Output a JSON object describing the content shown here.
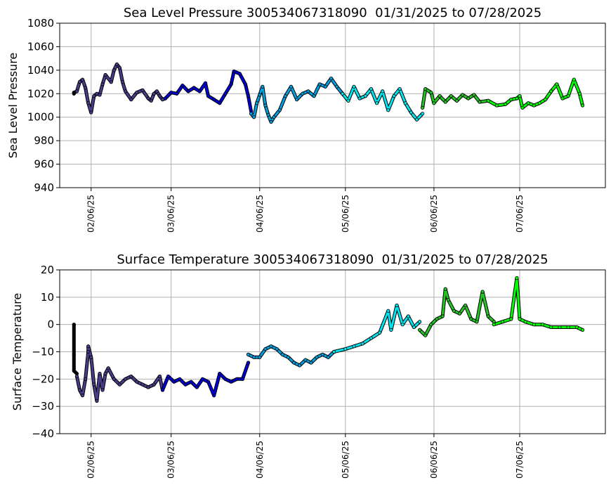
{
  "chart_data": [
    {
      "type": "scatter",
      "title": "Sea Level Pressure 300534067318090  01/31/2025 to 07/28/2025",
      "ylabel": "Sea Level Pressure",
      "xlabel": "",
      "xlim": [
        "2025-01-26",
        "2025-08-05"
      ],
      "ylim": [
        940,
        1080
      ],
      "yticks": [
        940,
        960,
        980,
        1000,
        1020,
        1040,
        1060,
        1080
      ],
      "xticks": [
        {
          "date": "2025-02-06",
          "label": "02/06/25"
        },
        {
          "date": "2025-03-06",
          "label": "03/06/25"
        },
        {
          "date": "2025-04-06",
          "label": "04/06/25"
        },
        {
          "date": "2025-05-06",
          "label": "05/06/25"
        },
        {
          "date": "2025-06-06",
          "label": "06/06/25"
        },
        {
          "date": "2025-07-06",
          "label": "07/06/25"
        }
      ],
      "grid": true,
      "series": [
        {
          "color": "#000000",
          "points": [
            [
              "2025-01-31",
              1020
            ],
            [
              "2025-01-31",
              1021
            ],
            [
              "2025-02-01",
              1022
            ]
          ]
        },
        {
          "color": "#483d8b",
          "points": [
            [
              "2025-02-01",
              1022
            ],
            [
              "2025-02-02",
              1030
            ],
            [
              "2025-02-03",
              1032
            ],
            [
              "2025-02-04",
              1025
            ],
            [
              "2025-02-05",
              1012
            ],
            [
              "2025-02-06",
              1004
            ],
            [
              "2025-02-07",
              1018
            ],
            [
              "2025-02-08",
              1020
            ],
            [
              "2025-02-09",
              1019
            ],
            [
              "2025-02-10",
              1028
            ],
            [
              "2025-02-11",
              1036
            ],
            [
              "2025-02-13",
              1030
            ],
            [
              "2025-02-14",
              1040
            ],
            [
              "2025-02-15",
              1045
            ],
            [
              "2025-02-16",
              1042
            ],
            [
              "2025-02-17",
              1030
            ],
            [
              "2025-02-18",
              1022
            ],
            [
              "2025-02-20",
              1015
            ],
            [
              "2025-02-22",
              1021
            ],
            [
              "2025-02-24",
              1023
            ],
            [
              "2025-02-26",
              1016
            ],
            [
              "2025-02-27",
              1014
            ],
            [
              "2025-02-28",
              1020
            ],
            [
              "2025-03-01",
              1022
            ],
            [
              "2025-03-02",
              1018
            ],
            [
              "2025-03-03",
              1015
            ],
            [
              "2025-03-04",
              1016
            ]
          ]
        },
        {
          "color": "#0000dd",
          "points": [
            [
              "2025-03-04",
              1016
            ],
            [
              "2025-03-06",
              1021
            ],
            [
              "2025-03-08",
              1020
            ],
            [
              "2025-03-10",
              1027
            ],
            [
              "2025-03-12",
              1022
            ],
            [
              "2025-03-14",
              1025
            ],
            [
              "2025-03-16",
              1022
            ],
            [
              "2025-03-18",
              1029
            ],
            [
              "2025-03-19",
              1018
            ],
            [
              "2025-03-21",
              1015
            ],
            [
              "2025-03-23",
              1012
            ],
            [
              "2025-03-25",
              1020
            ],
            [
              "2025-03-27",
              1028
            ],
            [
              "2025-03-28",
              1039
            ],
            [
              "2025-03-30",
              1037
            ],
            [
              "2025-04-01",
              1028
            ],
            [
              "2025-04-02",
              1018
            ],
            [
              "2025-04-03",
              1005
            ]
          ]
        },
        {
          "color": "#00a0e0",
          "points": [
            [
              "2025-04-03",
              1003
            ],
            [
              "2025-04-04",
              1000
            ],
            [
              "2025-04-05",
              1012
            ],
            [
              "2025-04-06",
              1019
            ],
            [
              "2025-04-07",
              1026
            ],
            [
              "2025-04-08",
              1010
            ],
            [
              "2025-04-09",
              1002
            ],
            [
              "2025-04-10",
              996
            ],
            [
              "2025-04-11",
              1000
            ],
            [
              "2025-04-13",
              1006
            ],
            [
              "2025-04-15",
              1018
            ],
            [
              "2025-04-17",
              1026
            ],
            [
              "2025-04-19",
              1015
            ],
            [
              "2025-04-21",
              1020
            ],
            [
              "2025-04-23",
              1022
            ],
            [
              "2025-04-25",
              1018
            ],
            [
              "2025-04-27",
              1028
            ],
            [
              "2025-04-29",
              1026
            ],
            [
              "2025-05-01",
              1033
            ],
            [
              "2025-05-03",
              1026
            ],
            [
              "2025-05-05",
              1020
            ]
          ]
        },
        {
          "color": "#00e5ee",
          "points": [
            [
              "2025-05-05",
              1020
            ],
            [
              "2025-05-07",
              1014
            ],
            [
              "2025-05-09",
              1026
            ],
            [
              "2025-05-11",
              1016
            ],
            [
              "2025-05-13",
              1018
            ],
            [
              "2025-05-15",
              1024
            ],
            [
              "2025-05-17",
              1012
            ],
            [
              "2025-05-19",
              1022
            ],
            [
              "2025-05-21",
              1006
            ],
            [
              "2025-05-23",
              1018
            ],
            [
              "2025-05-25",
              1024
            ],
            [
              "2025-05-27",
              1012
            ],
            [
              "2025-05-29",
              1004
            ],
            [
              "2025-05-31",
              998
            ],
            [
              "2025-06-02",
              1003
            ]
          ]
        },
        {
          "color": "#22c722",
          "points": [
            [
              "2025-06-02",
              1008
            ],
            [
              "2025-06-03",
              1024
            ],
            [
              "2025-06-05",
              1021
            ],
            [
              "2025-06-06",
              1012
            ],
            [
              "2025-06-08",
              1018
            ],
            [
              "2025-06-10",
              1013
            ],
            [
              "2025-06-12",
              1018
            ],
            [
              "2025-06-14",
              1014
            ],
            [
              "2025-06-16",
              1019
            ],
            [
              "2025-06-18",
              1016
            ],
            [
              "2025-06-20",
              1019
            ],
            [
              "2025-06-22",
              1013
            ],
            [
              "2025-06-25",
              1014
            ]
          ]
        },
        {
          "color": "#00ff00",
          "points": [
            [
              "2025-06-25",
              1014
            ],
            [
              "2025-06-28",
              1010
            ],
            [
              "2025-07-01",
              1011
            ],
            [
              "2025-07-03",
              1015
            ],
            [
              "2025-07-05",
              1016
            ],
            [
              "2025-07-06",
              1018
            ],
            [
              "2025-07-07",
              1008
            ],
            [
              "2025-07-09",
              1012
            ],
            [
              "2025-07-11",
              1010
            ],
            [
              "2025-07-13",
              1012
            ],
            [
              "2025-07-15",
              1015
            ],
            [
              "2025-07-17",
              1022
            ],
            [
              "2025-07-19",
              1028
            ],
            [
              "2025-07-21",
              1016
            ],
            [
              "2025-07-23",
              1018
            ],
            [
              "2025-07-25",
              1032
            ],
            [
              "2025-07-27",
              1020
            ],
            [
              "2025-07-28",
              1010
            ]
          ]
        }
      ]
    },
    {
      "type": "scatter",
      "title": "Surface Temperature 300534067318090  01/31/2025 to 07/28/2025",
      "ylabel": "Surface Temperature",
      "xlabel": "",
      "xlim": [
        "2025-01-26",
        "2025-08-05"
      ],
      "ylim": [
        -40,
        20
      ],
      "yticks": [
        -40,
        -30,
        -20,
        -10,
        0,
        10,
        20
      ],
      "xticks": [
        {
          "date": "2025-02-06",
          "label": "02/06/25"
        },
        {
          "date": "2025-03-06",
          "label": "03/06/25"
        },
        {
          "date": "2025-04-06",
          "label": "04/06/25"
        },
        {
          "date": "2025-05-06",
          "label": "05/06/25"
        },
        {
          "date": "2025-06-06",
          "label": "06/06/25"
        },
        {
          "date": "2025-07-06",
          "label": "07/06/25"
        }
      ],
      "grid": true,
      "series": [
        {
          "color": "#000000",
          "points": [
            [
              "2025-01-31",
              0
            ],
            [
              "2025-01-31",
              -11
            ],
            [
              "2025-01-31",
              -17
            ],
            [
              "2025-02-01",
              -18
            ]
          ]
        },
        {
          "color": "#483d8b",
          "points": [
            [
              "2025-02-01",
              -19
            ],
            [
              "2025-02-02",
              -24
            ],
            [
              "2025-02-03",
              -26
            ],
            [
              "2025-02-04",
              -20
            ],
            [
              "2025-02-05",
              -10
            ],
            [
              "2025-02-05",
              -8
            ],
            [
              "2025-02-06",
              -12
            ],
            [
              "2025-02-07",
              -22
            ],
            [
              "2025-02-08",
              -28
            ],
            [
              "2025-02-09",
              -18
            ],
            [
              "2025-02-10",
              -24
            ],
            [
              "2025-02-11",
              -18
            ],
            [
              "2025-02-12",
              -16
            ],
            [
              "2025-02-14",
              -20
            ],
            [
              "2025-02-16",
              -22
            ],
            [
              "2025-02-18",
              -20
            ],
            [
              "2025-02-20",
              -19
            ],
            [
              "2025-02-22",
              -21
            ],
            [
              "2025-02-24",
              -22
            ],
            [
              "2025-02-26",
              -23
            ],
            [
              "2025-02-28",
              -22
            ],
            [
              "2025-03-02",
              -19
            ],
            [
              "2025-03-03",
              -24
            ]
          ]
        },
        {
          "color": "#0000dd",
          "points": [
            [
              "2025-03-03",
              -24
            ],
            [
              "2025-03-05",
              -19
            ],
            [
              "2025-03-07",
              -21
            ],
            [
              "2025-03-09",
              -20
            ],
            [
              "2025-03-11",
              -22
            ],
            [
              "2025-03-13",
              -21
            ],
            [
              "2025-03-15",
              -23
            ],
            [
              "2025-03-17",
              -20
            ],
            [
              "2025-03-19",
              -21
            ],
            [
              "2025-03-21",
              -26
            ],
            [
              "2025-03-23",
              -18
            ],
            [
              "2025-03-25",
              -20
            ],
            [
              "2025-03-27",
              -21
            ],
            [
              "2025-03-29",
              -20
            ],
            [
              "2025-03-31",
              -20
            ],
            [
              "2025-04-02",
              -14
            ]
          ]
        },
        {
          "color": "#00a0e0",
          "points": [
            [
              "2025-04-02",
              -11
            ],
            [
              "2025-04-04",
              -12
            ],
            [
              "2025-04-06",
              -12
            ],
            [
              "2025-04-08",
              -9
            ],
            [
              "2025-04-10",
              -8
            ],
            [
              "2025-04-12",
              -9
            ],
            [
              "2025-04-14",
              -11
            ],
            [
              "2025-04-16",
              -12
            ],
            [
              "2025-04-18",
              -14
            ],
            [
              "2025-04-20",
              -15
            ],
            [
              "2025-04-22",
              -13
            ],
            [
              "2025-04-24",
              -14
            ],
            [
              "2025-04-26",
              -12
            ],
            [
              "2025-04-28",
              -11
            ],
            [
              "2025-04-30",
              -12
            ],
            [
              "2025-05-02",
              -10
            ]
          ]
        },
        {
          "color": "#00e5ee",
          "points": [
            [
              "2025-05-02",
              -10
            ],
            [
              "2025-05-06",
              -9
            ],
            [
              "2025-05-09",
              -8
            ],
            [
              "2025-05-12",
              -7
            ],
            [
              "2025-05-15",
              -5
            ],
            [
              "2025-05-18",
              -3
            ],
            [
              "2025-05-21",
              5
            ],
            [
              "2025-05-22",
              -2
            ],
            [
              "2025-05-24",
              7
            ],
            [
              "2025-05-26",
              0
            ],
            [
              "2025-05-28",
              3
            ],
            [
              "2025-05-30",
              -1
            ],
            [
              "2025-06-01",
              1
            ]
          ]
        },
        {
          "color": "#22c722",
          "points": [
            [
              "2025-06-01",
              -2
            ],
            [
              "2025-06-03",
              -4
            ],
            [
              "2025-06-05",
              0
            ],
            [
              "2025-06-07",
              2
            ],
            [
              "2025-06-09",
              3
            ],
            [
              "2025-06-10",
              13
            ],
            [
              "2025-06-11",
              9
            ],
            [
              "2025-06-13",
              5
            ],
            [
              "2025-06-15",
              4
            ],
            [
              "2025-06-17",
              7
            ],
            [
              "2025-06-19",
              2
            ],
            [
              "2025-06-21",
              1
            ],
            [
              "2025-06-23",
              12
            ],
            [
              "2025-06-25",
              3
            ],
            [
              "2025-06-27",
              1
            ]
          ]
        },
        {
          "color": "#00ff00",
          "points": [
            [
              "2025-06-27",
              0
            ],
            [
              "2025-06-30",
              1
            ],
            [
              "2025-07-03",
              2
            ],
            [
              "2025-07-05",
              17
            ],
            [
              "2025-07-06",
              2
            ],
            [
              "2025-07-08",
              1
            ],
            [
              "2025-07-11",
              0
            ],
            [
              "2025-07-14",
              0
            ],
            [
              "2025-07-17",
              -1
            ],
            [
              "2025-07-20",
              -1
            ],
            [
              "2025-07-23",
              -1
            ],
            [
              "2025-07-26",
              -1
            ],
            [
              "2025-07-28",
              -2
            ]
          ]
        }
      ]
    }
  ]
}
